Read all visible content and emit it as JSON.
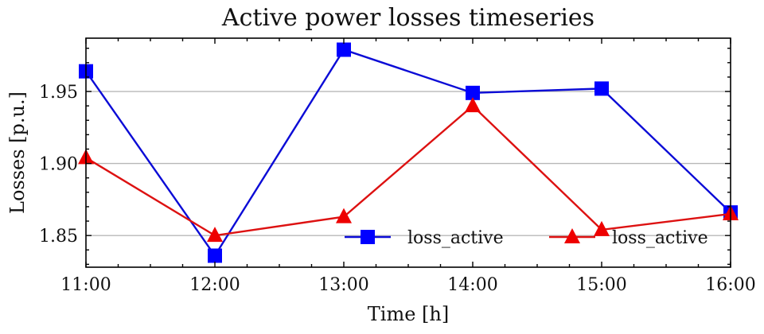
{
  "chart_data": {
    "type": "line",
    "title": "Active power losses timeseries",
    "xlabel": "Time [h]",
    "ylabel": "Losses [p.u.]",
    "categories": [
      "11:00",
      "12:00",
      "13:00",
      "14:00",
      "15:00",
      "16:00"
    ],
    "ylim": [
      1.828,
      1.987
    ],
    "yticks": [
      "1.85",
      "1.90",
      "1.95"
    ],
    "grid": "horizontal",
    "legend_position": "lower-right",
    "series": [
      {
        "name": "loss_active",
        "marker": "square",
        "color": "#0000ff",
        "line_color": "#0b0bd6",
        "values": [
          1.964,
          1.836,
          1.979,
          1.949,
          1.952,
          1.866
        ]
      },
      {
        "name": "loss_active",
        "marker": "triangle",
        "color": "#ee0000",
        "line_color": "#dd1111",
        "values": [
          1.904,
          1.85,
          1.863,
          1.94,
          1.854,
          1.865
        ]
      }
    ]
  }
}
